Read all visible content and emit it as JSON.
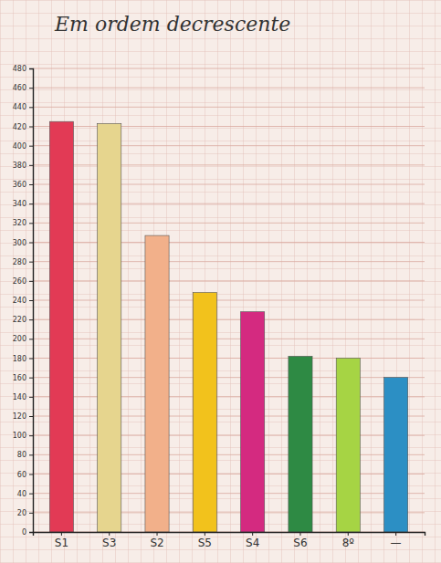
{
  "chart_data": {
    "type": "bar",
    "title": "Em ordem decrescente",
    "categories": [
      "S1",
      "S3",
      "S2",
      "S5",
      "S4",
      "S6",
      "8º",
      "—"
    ],
    "values": [
      425,
      423,
      307,
      248,
      228,
      182,
      180,
      160
    ],
    "colors": [
      "#e23a55",
      "#e6d58e",
      "#f2b08a",
      "#f2c21c",
      "#d42a80",
      "#2e8a44",
      "#a6d444",
      "#2c8fc4"
    ],
    "ylim": [
      0,
      480
    ],
    "yticks": [
      0,
      20,
      40,
      60,
      80,
      100,
      120,
      140,
      160,
      180,
      200,
      220,
      240,
      260,
      280,
      300,
      320,
      340,
      360,
      380,
      400,
      420,
      440,
      460,
      480
    ],
    "grid": true
  }
}
